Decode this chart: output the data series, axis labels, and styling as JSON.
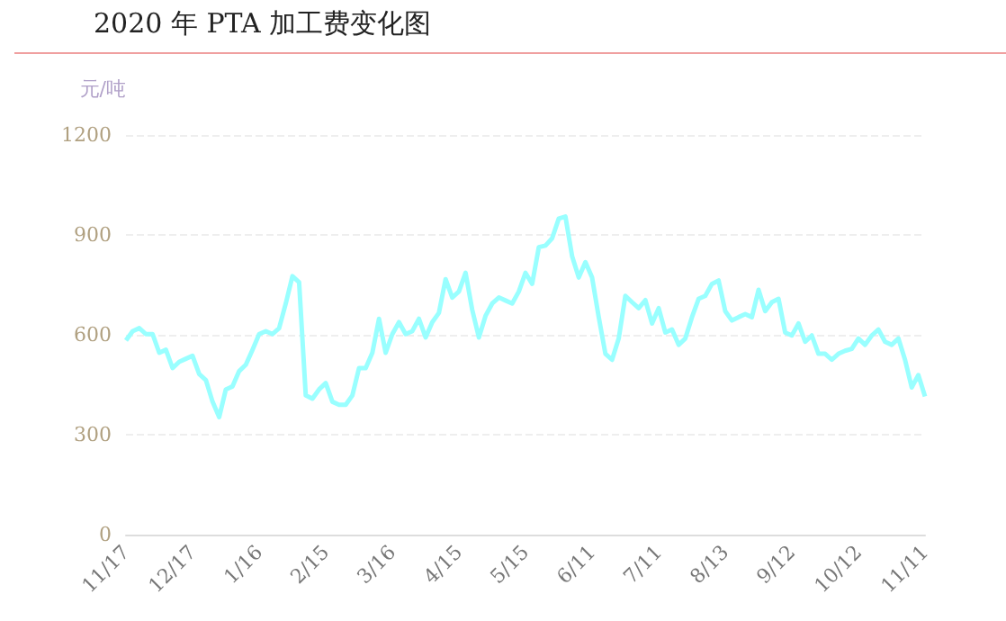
{
  "chart_data": {
    "type": "line",
    "title": "2020 年 PTA 加工费变化图",
    "ylabel": "元/吨",
    "categories": [
      "11/17",
      null,
      null,
      null,
      null,
      null,
      null,
      null,
      null,
      null,
      "12/17",
      null,
      null,
      null,
      null,
      null,
      null,
      null,
      null,
      null,
      "1/16",
      null,
      null,
      null,
      null,
      null,
      null,
      null,
      null,
      null,
      "2/15",
      null,
      null,
      null,
      null,
      null,
      null,
      null,
      null,
      null,
      "3/16",
      null,
      null,
      null,
      null,
      null,
      null,
      null,
      null,
      null,
      "4/15",
      null,
      null,
      null,
      null,
      null,
      null,
      null,
      null,
      null,
      "5/15",
      null,
      null,
      null,
      null,
      null,
      null,
      null,
      null,
      null,
      "6/11",
      null,
      null,
      null,
      null,
      null,
      null,
      null,
      null,
      null,
      "7/11",
      null,
      null,
      null,
      null,
      null,
      null,
      null,
      null,
      null,
      "8/13",
      null,
      null,
      null,
      null,
      null,
      null,
      null,
      null,
      null,
      "9/12",
      null,
      null,
      null,
      null,
      null,
      null,
      null,
      null,
      null,
      "10/12",
      null,
      null,
      null,
      null,
      null,
      null,
      null,
      null,
      null,
      "11/11"
    ],
    "series": [
      {
        "color": "#99ffff",
        "values": [
          583,
          611,
          620,
          602,
          602,
          546,
          555,
          500,
          519,
          528,
          537,
          482,
          464,
          399,
          353,
          436,
          445,
          491,
          510,
          555,
          602,
          611,
          602,
          620,
          694,
          776,
          758,
          418,
          408,
          436,
          455,
          399,
          390,
          390,
          418,
          500,
          500,
          546,
          648,
          546,
          602,
          638,
          602,
          611,
          648,
          592,
          638,
          666,
          767,
          712,
          730,
          786,
          675,
          592,
          657,
          694,
          712,
          703,
          694,
          730,
          786,
          753,
          863,
          868,
          890,
          949,
          955,
          836,
          772,
          818,
          772,
          653,
          543,
          525,
          589,
          717,
          698,
          680,
          704,
          634,
          680,
          607,
          616,
          570,
          589,
          653,
          708,
          717,
          753,
          763,
          671,
          643,
          653,
          662,
          653,
          735,
          671,
          698,
          708,
          607,
          598,
          634,
          579,
          598,
          543,
          543,
          525,
          543,
          552,
          558,
          589,
          570,
          598,
          616,
          579,
          570,
          589,
          525,
          442,
          479,
          415
        ]
      }
    ],
    "ylim": [
      0,
      1200
    ],
    "yticks": [
      0,
      300,
      600,
      900,
      1200
    ],
    "grid": "y",
    "marker": "none",
    "line_style": "solid"
  }
}
